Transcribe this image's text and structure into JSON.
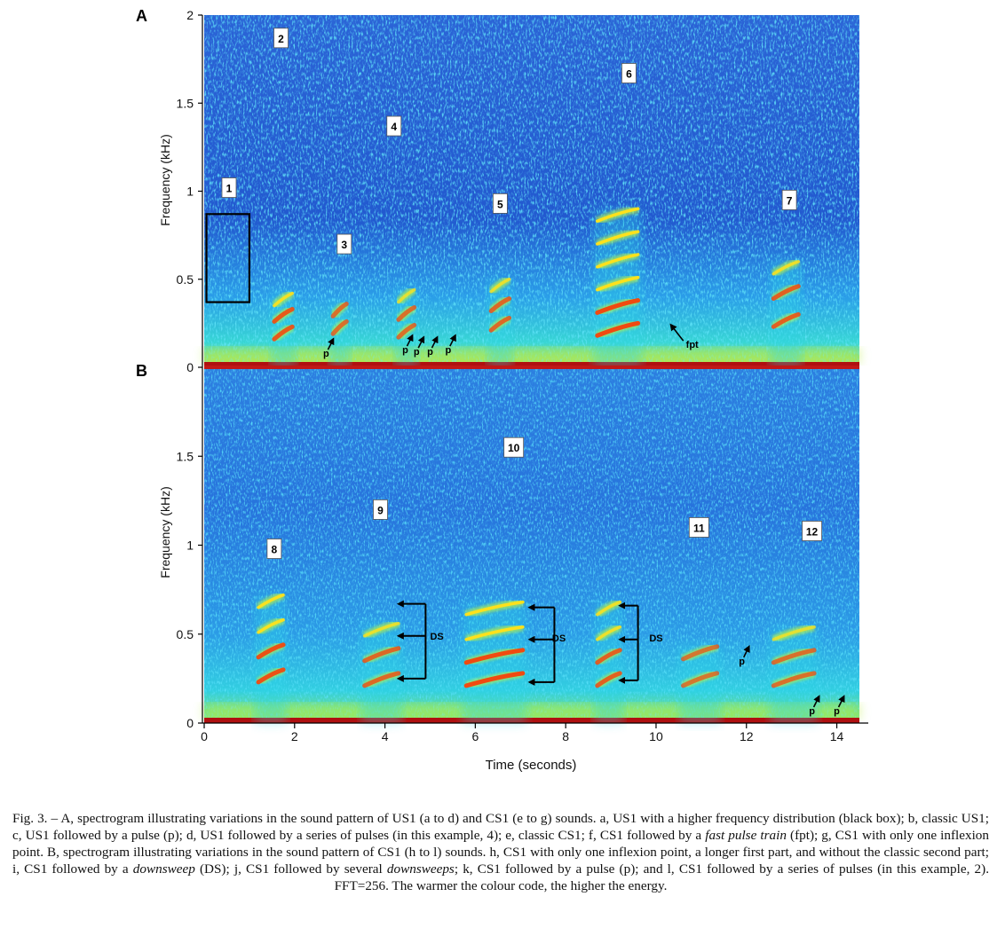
{
  "figure": {
    "caption": {
      "fig_label": "Fig. 3.",
      "s01": " – A, spectrogram illustrating variations in the sound pattern of US1 (a to d) and CS1 (e to g) sounds. a, US1 with a higher frequency distribution (black box); b, classic US1; c, US1 followed by a pulse (p); d, US1 followed by a series of pulses (in this example, 4); e, classic CS1; f, CS1 followed by a ",
      "i01": "fast pulse train",
      "s02": " (fpt); g, CS1 with only one inflexion point. B, spectrogram illustrating variations in the sound pattern of CS1 (h to l) sounds. h, CS1 with only one inflexion point, a longer first part, and without the classic second part; i, CS1 followed by a ",
      "i02": "downsweep",
      "s03": " (DS); j, CS1 followed by several ",
      "i03": "downsweeps",
      "s04": "; k, CS1 followed by a pulse (p); and l, CS1 followed by a series of pulses (in this example, 2). FFT=256. The warmer the colour code, the higher the energy."
    }
  },
  "chart_data": [
    {
      "type": "heatmap",
      "panel": "A",
      "xlabel": "",
      "ylabel": "Frequency (kHz)",
      "xlim": [
        0,
        14.5
      ],
      "ylim": [
        0,
        2
      ],
      "yticks": [
        0,
        0.5,
        1,
        1.5,
        2
      ],
      "ytick_labels": [
        "0",
        "0.5",
        "1",
        "1.5",
        "2"
      ],
      "colormap": [
        "#1a2fa8",
        "#1f6fe0",
        "#2ad4e6",
        "#b8f04a",
        "#ffe11c",
        "#f04a10",
        "#b01010"
      ],
      "sound_labels": [
        {
          "text": "1",
          "t": 0.55,
          "f": 1.02
        },
        {
          "text": "2",
          "t": 1.7,
          "f": 1.87
        },
        {
          "text": "3",
          "t": 3.1,
          "f": 0.7
        },
        {
          "text": "4",
          "t": 4.2,
          "f": 1.37
        },
        {
          "text": "5",
          "t": 6.55,
          "f": 0.93
        },
        {
          "text": "6",
          "t": 9.4,
          "f": 1.67
        },
        {
          "text": "7",
          "t": 12.95,
          "f": 0.95
        }
      ],
      "annotations": [
        {
          "text": "p",
          "t": 2.7,
          "f": 0.06
        },
        {
          "text": "p",
          "t": 4.45,
          "f": 0.08
        },
        {
          "text": "p",
          "t": 4.7,
          "f": 0.07
        },
        {
          "text": "p",
          "t": 5.0,
          "f": 0.07
        },
        {
          "text": "p",
          "t": 5.4,
          "f": 0.08
        },
        {
          "text": "fpt",
          "t": 10.8,
          "f": 0.11
        }
      ],
      "black_box": {
        "t0": 0.05,
        "t1": 1.0,
        "f0": 0.37,
        "f1": 0.87
      },
      "calls": [
        {
          "t0": 1.55,
          "t1": 1.95,
          "harmonics": [
            0.15,
            0.25,
            0.34
          ],
          "intensity": 0.9
        },
        {
          "t0": 2.85,
          "t1": 3.15,
          "harmonics": [
            0.18,
            0.28
          ],
          "intensity": 0.75
        },
        {
          "t0": 4.3,
          "t1": 4.65,
          "harmonics": [
            0.16,
            0.26,
            0.36
          ],
          "intensity": 0.75
        },
        {
          "t0": 6.35,
          "t1": 6.75,
          "harmonics": [
            0.2,
            0.31,
            0.42
          ],
          "intensity": 0.8
        },
        {
          "t0": 8.7,
          "t1": 9.6,
          "harmonics": [
            0.17,
            0.3,
            0.43,
            0.56,
            0.69,
            0.82
          ],
          "intensity": 1.0
        },
        {
          "t0": 12.6,
          "t1": 13.15,
          "harmonics": [
            0.22,
            0.38,
            0.52
          ],
          "intensity": 0.85
        }
      ],
      "pulses": [
        3.2,
        4.45,
        4.72,
        4.98,
        5.25,
        9.8,
        10.0,
        10.2
      ]
    },
    {
      "type": "heatmap",
      "panel": "B",
      "xlabel": "Time (seconds)",
      "ylabel": "Frequency (kHz)",
      "xlim": [
        0,
        14.5
      ],
      "ylim": [
        0,
        2
      ],
      "xticks": [
        0,
        2,
        4,
        6,
        8,
        10,
        12,
        14
      ],
      "xtick_labels": [
        "0",
        "2",
        "4",
        "6",
        "8",
        "10",
        "12",
        "14"
      ],
      "yticks": [
        0,
        0.5,
        1,
        1.5
      ],
      "ytick_labels": [
        "0",
        "0.5",
        "1",
        "1.5"
      ],
      "sound_labels": [
        {
          "text": "8",
          "t": 1.55,
          "f": 0.98
        },
        {
          "text": "9",
          "t": 3.9,
          "f": 1.2
        },
        {
          "text": "10",
          "t": 6.85,
          "f": 1.55
        },
        {
          "text": "11",
          "t": 10.95,
          "f": 1.1
        },
        {
          "text": "12",
          "t": 13.45,
          "f": 1.08
        }
      ],
      "annotations": [
        {
          "text": "DS",
          "t": 5.15,
          "f": 0.47
        },
        {
          "text": "DS",
          "t": 7.85,
          "f": 0.46
        },
        {
          "text": "DS",
          "t": 10.0,
          "f": 0.46
        },
        {
          "text": "p",
          "t": 11.9,
          "f": 0.33
        },
        {
          "text": "p",
          "t": 13.45,
          "f": 0.05
        },
        {
          "text": "p",
          "t": 14.0,
          "f": 0.05
        }
      ],
      "ds_brackets": [
        {
          "t_left": 4.3,
          "t_right": 4.9,
          "f_top": 0.67,
          "f_mid": 0.49,
          "f_bot": 0.25
        },
        {
          "t_left": 7.2,
          "t_right": 7.75,
          "f_top": 0.65,
          "f_mid": 0.47,
          "f_bot": 0.23
        },
        {
          "t_left": 9.2,
          "t_right": 9.6,
          "f_top": 0.66,
          "f_mid": 0.47,
          "f_bot": 0.24
        }
      ],
      "calls": [
        {
          "t0": 1.2,
          "t1": 1.75,
          "harmonics": [
            0.22,
            0.36,
            0.5,
            0.64
          ],
          "intensity": 0.95
        },
        {
          "t0": 3.55,
          "t1": 4.3,
          "harmonics": [
            0.2,
            0.34,
            0.48
          ],
          "intensity": 0.8
        },
        {
          "t0": 5.8,
          "t1": 7.05,
          "harmonics": [
            0.2,
            0.33,
            0.46,
            0.6
          ],
          "intensity": 1.0
        },
        {
          "t0": 8.7,
          "t1": 9.2,
          "harmonics": [
            0.2,
            0.33,
            0.46,
            0.6
          ],
          "intensity": 0.85
        },
        {
          "t0": 10.6,
          "t1": 11.35,
          "harmonics": [
            0.2,
            0.35
          ],
          "intensity": 0.7
        },
        {
          "t0": 12.6,
          "t1": 13.5,
          "harmonics": [
            0.2,
            0.33,
            0.46
          ],
          "intensity": 0.75
        }
      ],
      "pulses": [
        11.85,
        13.55,
        13.85
      ]
    }
  ]
}
